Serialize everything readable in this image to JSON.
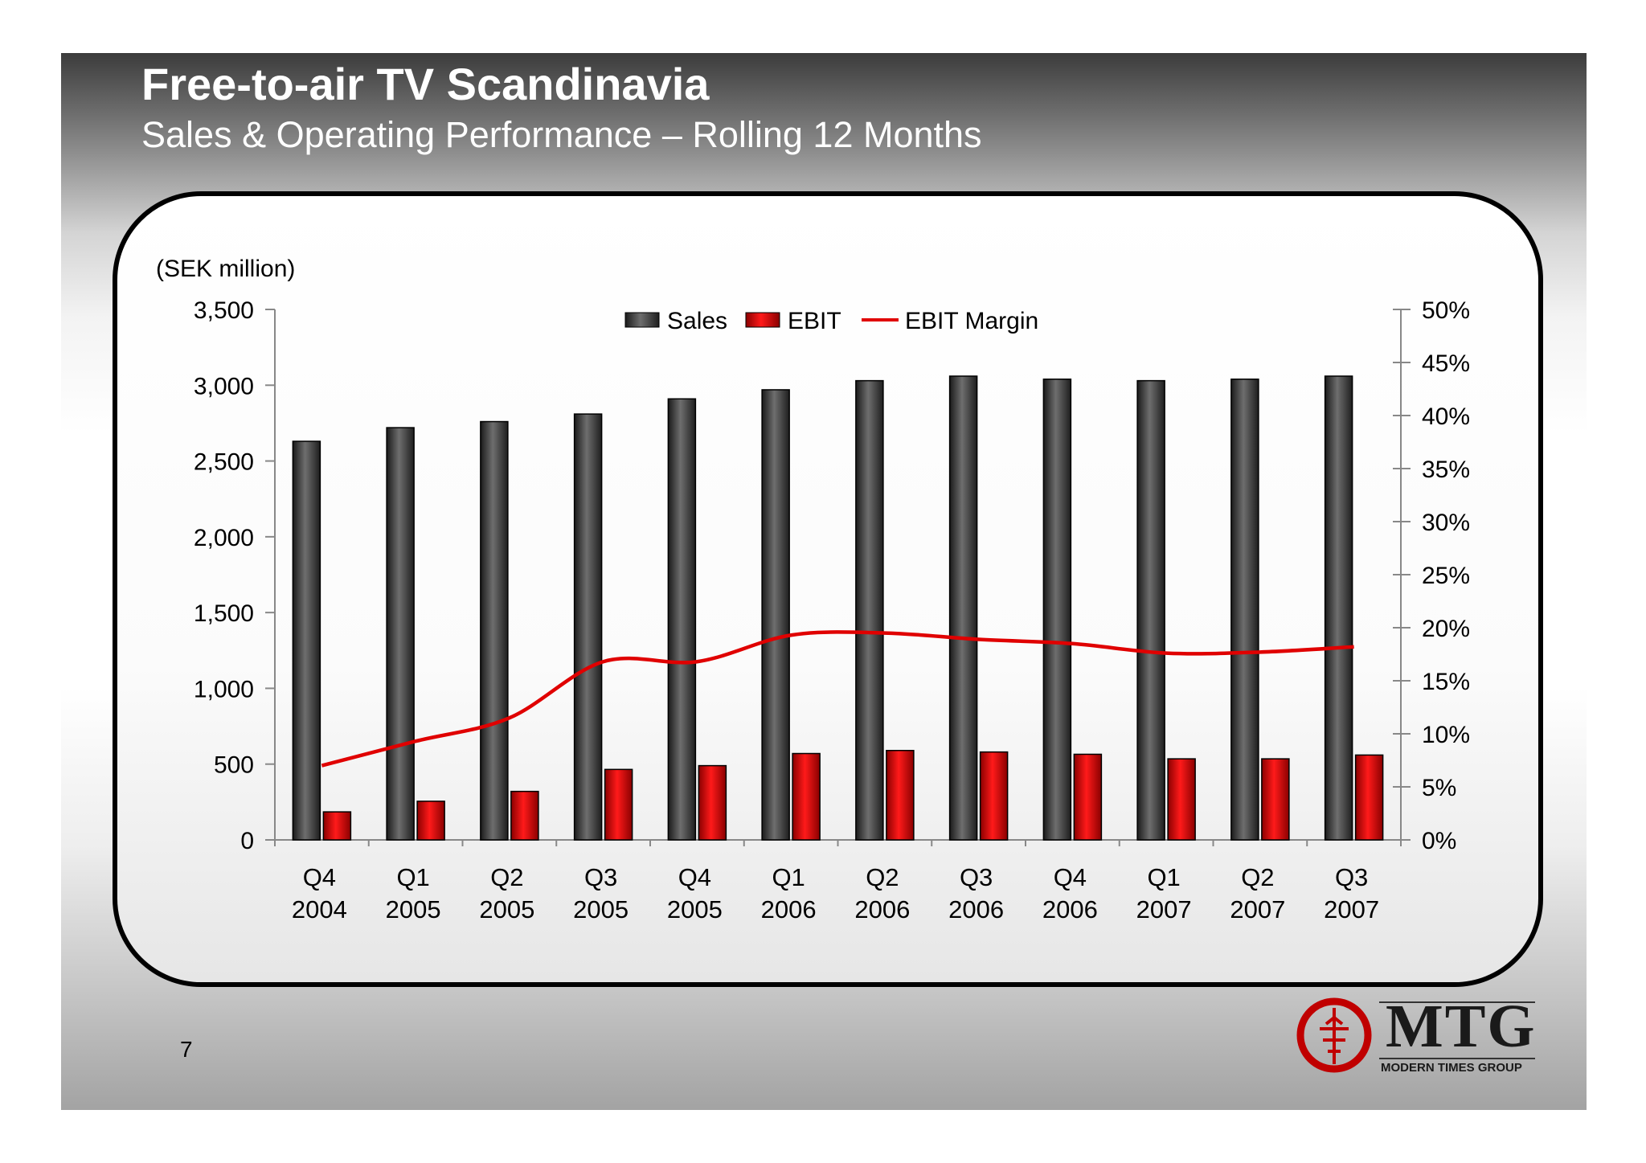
{
  "slide": {
    "title": "Free-to-air TV Scandinavia",
    "subtitle": "Sales & Operating Performance – Rolling 12 Months",
    "page_number": "7"
  },
  "logo": {
    "name": "MTG",
    "tagline": "MODERN TIMES GROUP",
    "emblem_icon": "mtg-emblem-icon",
    "color": "#d00000"
  },
  "colors": {
    "sales": "#4a4a4a",
    "ebit": "#e00000",
    "ebit_margin": "#e00000"
  },
  "chart_data": {
    "type": "bar",
    "unit_label": "(SEK million)",
    "categories": [
      [
        "Q4",
        "2004"
      ],
      [
        "Q1",
        "2005"
      ],
      [
        "Q2",
        "2005"
      ],
      [
        "Q3",
        "2005"
      ],
      [
        "Q4",
        "2005"
      ],
      [
        "Q1",
        "2006"
      ],
      [
        "Q2",
        "2006"
      ],
      [
        "Q3",
        "2006"
      ],
      [
        "Q4",
        "2006"
      ],
      [
        "Q1",
        "2007"
      ],
      [
        "Q2",
        "2007"
      ],
      [
        "Q3",
        "2007"
      ]
    ],
    "series": [
      {
        "name": "Sales",
        "type": "bar",
        "axis": "left",
        "values": [
          2630,
          2720,
          2760,
          2810,
          2910,
          2970,
          3030,
          3060,
          3040,
          3030,
          3040,
          3060
        ]
      },
      {
        "name": "EBIT",
        "type": "bar",
        "axis": "left",
        "values": [
          185,
          255,
          320,
          465,
          490,
          570,
          590,
          580,
          565,
          535,
          535,
          560
        ]
      },
      {
        "name": "EBIT Margin",
        "type": "line",
        "axis": "right",
        "values": [
          7.0,
          9.3,
          11.5,
          16.8,
          16.8,
          19.3,
          19.5,
          18.9,
          18.5,
          17.6,
          17.7,
          18.2
        ]
      }
    ],
    "left_axis": {
      "min": 0,
      "max": 3500,
      "ticks": [
        "0",
        "500",
        "1,000",
        "1,500",
        "2,000",
        "2,500",
        "3,000",
        "3,500"
      ]
    },
    "right_axis": {
      "min": 0,
      "max": 50,
      "ticks": [
        "0%",
        "5%",
        "10%",
        "15%",
        "20%",
        "25%",
        "30%",
        "35%",
        "40%",
        "45%",
        "50%"
      ]
    },
    "legend": {
      "placement": "top-center",
      "labels": [
        "Sales",
        "EBIT",
        "EBIT Margin"
      ]
    },
    "grid": false
  }
}
